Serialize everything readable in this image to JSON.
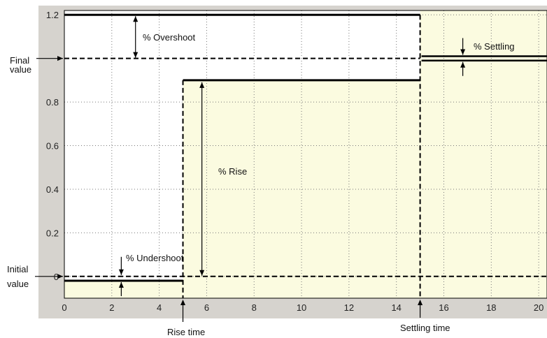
{
  "figure": {
    "annotations": {
      "overshoot": "% Overshoot",
      "settling": "% Settling",
      "rise": "% Rise",
      "undershoot": "% Undershoot"
    },
    "side_labels": {
      "final_line1": "Final",
      "final_line2": "value",
      "initial_line1": "Initial",
      "initial_line2": "value"
    },
    "bottom_labels": {
      "rise_time": "Rise time",
      "settling_time": "Settling time"
    },
    "x_ticks": [
      "0",
      "2",
      "4",
      "6",
      "8",
      "10",
      "12",
      "14",
      "16",
      "18",
      "20"
    ],
    "y_ticks": [
      "0",
      "0.2",
      "0.4",
      "0.6",
      "0.8",
      "1.2"
    ],
    "colors": {
      "frame_background": "#d6d3ce",
      "zone_fill": "#fbfbe0",
      "plot_background": "#ffffff",
      "line": "#000000",
      "grid": "#777777"
    }
  },
  "chart_data": {
    "type": "line",
    "xlim": [
      0,
      20
    ],
    "ylim": [
      -0.1,
      1.22
    ],
    "grid": true,
    "x_ticks": [
      0,
      2,
      4,
      6,
      8,
      10,
      12,
      14,
      16,
      18,
      20
    ],
    "y_ticks": [
      0,
      0.2,
      0.4,
      0.6,
      0.8,
      1.2
    ],
    "initial_value": 0,
    "final_value": 1,
    "rise_time": 5,
    "settling_time": 15,
    "undershoot_level": -0.02,
    "rise_level": 0.9,
    "overshoot_level": 1.2,
    "settling_upper": 1.01,
    "settling_lower": 0.99
  }
}
